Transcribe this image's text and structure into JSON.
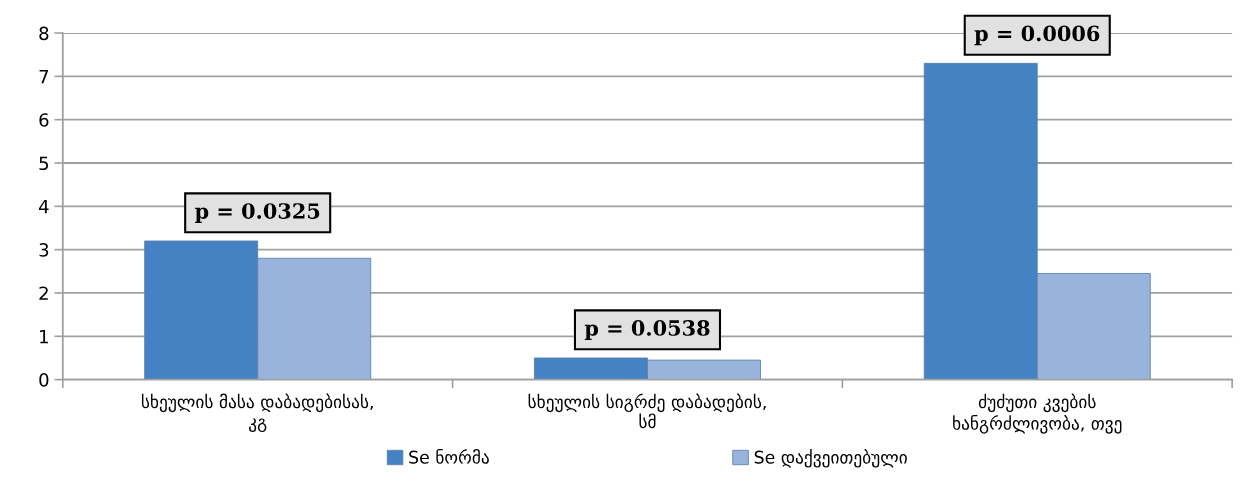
{
  "chart_data": {
    "type": "bar",
    "categories": [
      "სხეულის მასა დაბადებისას,\nკგ",
      "სხეულის სიგრძე დაბადების,\nსმ",
      "ძუძუთი კვების\nხანგრძლივობა, თვე"
    ],
    "series": [
      {
        "name": "Se ნორმა",
        "color": "#4582c4",
        "values": [
          3.2,
          0.5,
          7.3
        ]
      },
      {
        "name": "Se დაქვეითებული",
        "color": "#98b4dc",
        "values": [
          2.8,
          0.45,
          2.45
        ]
      }
    ],
    "ylim": [
      0,
      8
    ],
    "yticks": [
      0,
      1,
      2,
      3,
      4,
      5,
      6,
      7,
      8
    ],
    "grid": "y",
    "legend": "bottom",
    "annotations": [
      "p = 0.0325",
      "p = 0.0538",
      "p = 0.0006"
    ]
  }
}
